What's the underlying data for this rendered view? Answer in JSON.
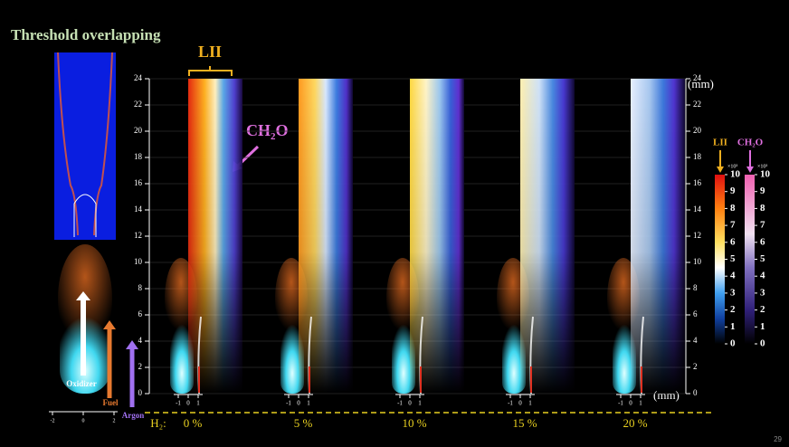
{
  "title": "Threshold overlapping",
  "lii_label": "LII",
  "ch2o_label": {
    "main": "CH",
    "sub": "2",
    "tail": "O"
  },
  "unit_y": "(mm)",
  "unit_x": "(mm)",
  "height_ticks": [
    0,
    2,
    4,
    6,
    8,
    10,
    12,
    14,
    16,
    18,
    20,
    22,
    24
  ],
  "colorbars": [
    {
      "label": "LII",
      "exponent": "×10³",
      "ticks": [
        0,
        1,
        2,
        3,
        4,
        5,
        6,
        7,
        8,
        9,
        10
      ]
    },
    {
      "label": "CH₂O",
      "exponent": "×10³",
      "ticks": [
        0,
        1,
        2,
        3,
        4,
        5,
        6,
        7,
        8,
        9,
        10
      ]
    }
  ],
  "flame_arrows": [
    "Oxidizer",
    "Fuel",
    "Argon"
  ],
  "flame_axis_ticks": [
    -2,
    0,
    2
  ],
  "panel_axis_ticks": [
    -1,
    0,
    1
  ],
  "h2_label": "H₂:",
  "panels": [
    "0 %",
    "5 %",
    "10 %",
    "15 %",
    "20 %"
  ],
  "page_number": "29"
}
